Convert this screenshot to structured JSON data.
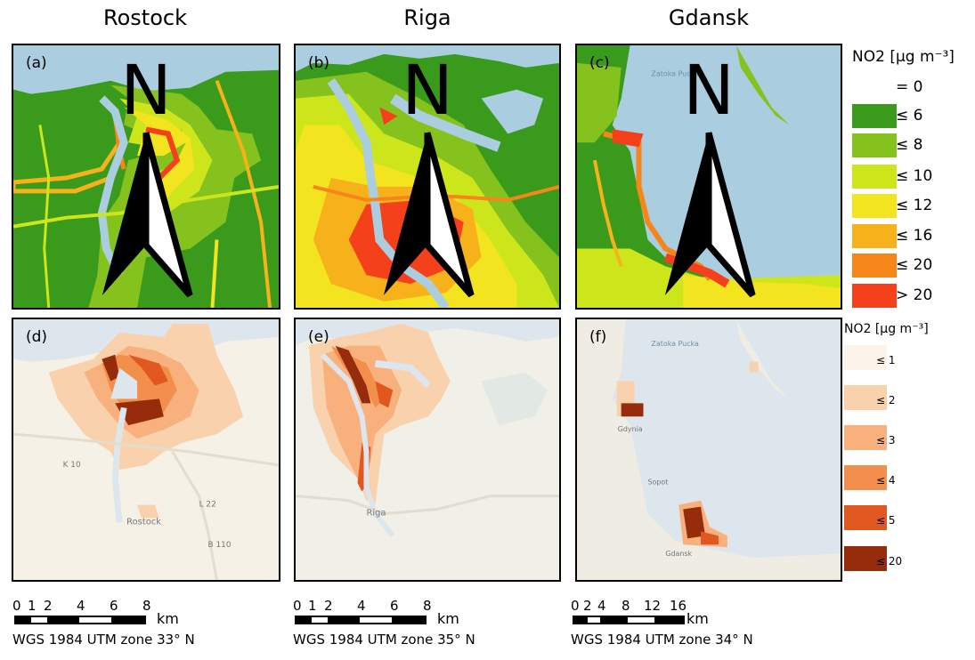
{
  "columns": [
    "Rostock",
    "Riga",
    "Gdansk"
  ],
  "panels": {
    "a": "(a)",
    "b": "(b)",
    "c": "(c)",
    "d": "(d)",
    "e": "(e)",
    "f": "(f)"
  },
  "map_labels": {
    "zatoka_c": "Zatoka Pucka",
    "zatoka_f": "Zatoka Pucka",
    "k10": "K 10",
    "l22": "L 22",
    "b110": "B 110",
    "rostock": "Rostock",
    "riga": "Riga",
    "gdynia": "Gdynia",
    "sopot": "Sopot",
    "gdansk": "Gdansk"
  },
  "north_label": "N",
  "legend_top": {
    "title": "NO2 [µg m⁻³]",
    "items": [
      {
        "label": "= 0",
        "color": "#ffffff"
      },
      {
        "label": "≤ 6",
        "color": "#3a9a1c"
      },
      {
        "label": "≤ 8",
        "color": "#86c21e"
      },
      {
        "label": "≤ 10",
        "color": "#cde61b"
      },
      {
        "label": "≤ 12",
        "color": "#f2e41f"
      },
      {
        "label": "≤ 16",
        "color": "#f7b21b"
      },
      {
        "label": "≤ 20",
        "color": "#f7861a"
      },
      {
        "label": "> 20",
        "color": "#f4401b"
      }
    ]
  },
  "legend_bottom": {
    "title": "NO2 [µg m⁻³]",
    "items": [
      {
        "label": "≤ 1",
        "color": "#fcf3ea"
      },
      {
        "label": "≤ 2",
        "color": "#f9d2ad"
      },
      {
        "label": "≤ 3",
        "color": "#f8b07c"
      },
      {
        "label": "≤ 4",
        "color": "#f38f4c"
      },
      {
        "label": "≤ 5",
        "color": "#e0581f"
      },
      {
        "label": "≤ 20",
        "color": "#962c0b"
      }
    ]
  },
  "scalebars": [
    {
      "ticks": [
        "0",
        "1",
        "2",
        "4",
        "6",
        "8"
      ],
      "unit": "km",
      "projection": "WGS 1984 UTM zone 33° N"
    },
    {
      "ticks": [
        "0",
        "1",
        "2",
        "4",
        "6",
        "8"
      ],
      "unit": "km",
      "projection": "WGS 1984 UTM zone 35° N"
    },
    {
      "ticks": [
        "0",
        "2",
        "4",
        "8",
        "12",
        "16"
      ],
      "unit": "km",
      "projection": "WGS 1984 UTM zone 34° N"
    }
  ]
}
